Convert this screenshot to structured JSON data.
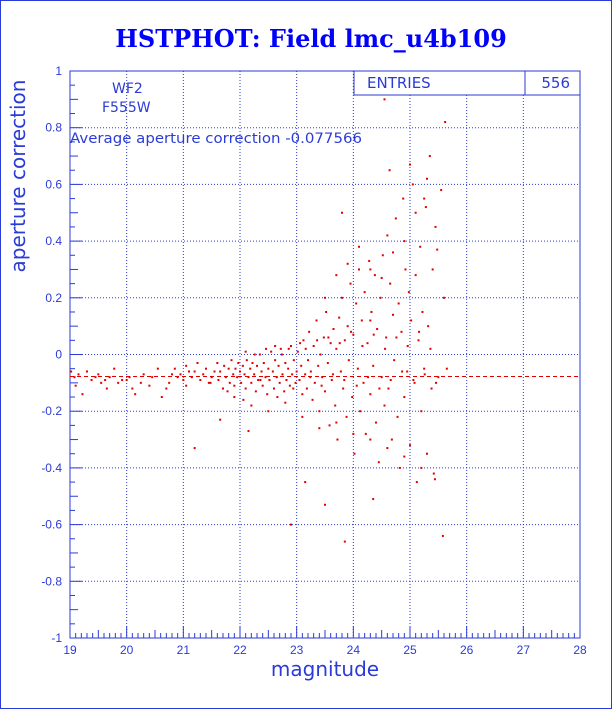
{
  "colors": {
    "axis": "#2b3bd6",
    "grid": "#2b3bd6",
    "points": "#e00000",
    "title": "#0000ff",
    "mean_line": "#e00000"
  },
  "stats_box": {
    "label": "ENTRIES",
    "value": "556"
  },
  "info": {
    "camera": "WF2",
    "filter": "F555W",
    "average_text": "Average aperture correction -0.077566"
  },
  "chart_data": {
    "type": "scatter",
    "title": "HSTPHOT: Field lmc_u4b109",
    "xlabel": "magnitude",
    "ylabel": "aperture correction",
    "xlim": [
      19,
      28
    ],
    "ylim": [
      -1,
      1
    ],
    "grid": true,
    "x_ticks": [
      19,
      20,
      21,
      22,
      23,
      24,
      25,
      26,
      27,
      28
    ],
    "y_ticks": [
      -1,
      -0.8,
      -0.6,
      -0.4,
      -0.2,
      0,
      0.2,
      0.4,
      0.6,
      0.8,
      1
    ],
    "y_tick_labels": [
      "-1",
      "-0.8",
      "-0.6",
      "-0.4",
      "-0.2",
      "0",
      "0.2",
      "0.4",
      "0.6",
      "0.8",
      "1"
    ],
    "mean_value": -0.077566,
    "series": [
      {
        "points": [
          [
            19.02,
            -0.06
          ],
          [
            19.08,
            -0.08
          ],
          [
            19.15,
            -0.07
          ],
          [
            19.22,
            -0.14
          ],
          [
            19.3,
            -0.06
          ],
          [
            19.38,
            -0.09
          ],
          [
            19.45,
            -0.08
          ],
          [
            19.55,
            -0.1
          ],
          [
            19.62,
            -0.09
          ],
          [
            19.7,
            -0.08
          ],
          [
            19.78,
            -0.05
          ],
          [
            19.85,
            -0.1
          ],
          [
            19.92,
            -0.09
          ],
          [
            20.0,
            -0.09
          ],
          [
            20.05,
            -0.08
          ],
          [
            20.1,
            -0.12
          ],
          [
            20.15,
            -0.14
          ],
          [
            20.3,
            -0.07
          ],
          [
            20.45,
            -0.08
          ],
          [
            20.55,
            -0.05
          ],
          [
            20.62,
            -0.15
          ],
          [
            20.7,
            -0.12
          ],
          [
            20.75,
            -0.1
          ],
          [
            20.8,
            -0.07
          ],
          [
            20.85,
            -0.05
          ],
          [
            20.9,
            -0.08
          ],
          [
            20.95,
            -0.07
          ],
          [
            21.0,
            -0.09
          ],
          [
            21.05,
            -0.04
          ],
          [
            21.1,
            -0.06
          ],
          [
            21.15,
            -0.08
          ],
          [
            21.2,
            -0.06
          ],
          [
            21.25,
            -0.03
          ],
          [
            21.3,
            -0.09
          ],
          [
            21.35,
            -0.07
          ],
          [
            21.4,
            -0.05
          ],
          [
            21.45,
            -0.1
          ],
          [
            21.5,
            -0.08
          ],
          [
            21.55,
            -0.06
          ],
          [
            21.6,
            -0.03
          ],
          [
            21.62,
            -0.09
          ],
          [
            21.65,
            -0.06
          ],
          [
            21.7,
            -0.12
          ],
          [
            21.72,
            -0.04
          ],
          [
            21.75,
            -0.08
          ],
          [
            21.8,
            -0.05
          ],
          [
            21.82,
            -0.1
          ],
          [
            21.85,
            -0.02
          ],
          [
            21.88,
            -0.07
          ],
          [
            21.9,
            -0.11
          ],
          [
            21.92,
            -0.05
          ],
          [
            21.95,
            -0.08
          ],
          [
            21.97,
            -0.03
          ],
          [
            22.0,
            -0.06
          ],
          [
            22.02,
            -0.1
          ],
          [
            22.05,
            -0.04
          ],
          [
            22.08,
            -0.07
          ],
          [
            22.1,
            -0.12
          ],
          [
            22.12,
            -0.02
          ],
          [
            22.15,
            -0.08
          ],
          [
            22.18,
            -0.05
          ],
          [
            22.2,
            -0.1
          ],
          [
            22.22,
            -0.03
          ],
          [
            22.25,
            -0.07
          ],
          [
            22.28,
            -0.13
          ],
          [
            22.3,
            -0.04
          ],
          [
            22.32,
            -0.09
          ],
          [
            22.35,
            0.0
          ],
          [
            22.38,
            -0.06
          ],
          [
            22.4,
            -0.11
          ],
          [
            22.42,
            -0.03
          ],
          [
            22.45,
            -0.08
          ],
          [
            22.48,
            -0.14
          ],
          [
            22.5,
            -0.05
          ],
          [
            22.52,
            -0.09
          ],
          [
            22.55,
            0.01
          ],
          [
            22.58,
            -0.06
          ],
          [
            22.6,
            -0.12
          ],
          [
            22.62,
            -0.02
          ],
          [
            22.65,
            -0.08
          ],
          [
            22.68,
            -0.04
          ],
          [
            22.7,
            -0.1
          ],
          [
            22.72,
            0.02
          ],
          [
            22.75,
            -0.07
          ],
          [
            22.78,
            -0.13
          ],
          [
            22.8,
            -0.03
          ],
          [
            22.82,
            -0.09
          ],
          [
            22.85,
            -0.05
          ],
          [
            22.88,
            -0.11
          ],
          [
            22.9,
            0.03
          ],
          [
            22.92,
            -0.07
          ],
          [
            22.95,
            -0.02
          ],
          [
            22.98,
            -0.1
          ],
          [
            23.0,
            -0.06
          ],
          [
            23.02,
            0.01
          ],
          [
            23.05,
            -0.09
          ],
          [
            23.08,
            -0.04
          ],
          [
            23.1,
            -0.14
          ],
          [
            23.12,
            0.05
          ],
          [
            23.15,
            -0.07
          ],
          [
            23.18,
            -0.12
          ],
          [
            23.2,
            -0.02
          ],
          [
            23.22,
            0.08
          ],
          [
            23.25,
            -0.06
          ],
          [
            23.28,
            -0.16
          ],
          [
            23.3,
            0.03
          ],
          [
            23.32,
            -0.1
          ],
          [
            23.35,
            0.12
          ],
          [
            23.38,
            -0.04
          ],
          [
            23.4,
            -0.2
          ],
          [
            23.42,
            0.0
          ],
          [
            23.45,
            -0.08
          ],
          [
            23.48,
            0.06
          ],
          [
            23.5,
            -0.13
          ],
          [
            23.52,
            0.15
          ],
          [
            23.55,
            -0.03
          ],
          [
            23.58,
            -0.25
          ],
          [
            23.6,
            0.04
          ],
          [
            23.62,
            -0.09
          ],
          [
            23.65,
            0.09
          ],
          [
            23.68,
            -0.18
          ],
          [
            23.7,
            0.02
          ],
          [
            23.72,
            -0.3
          ],
          [
            23.75,
            0.13
          ],
          [
            23.78,
            -0.06
          ],
          [
            23.8,
            0.2
          ],
          [
            23.82,
            -0.12
          ],
          [
            23.85,
            0.05
          ],
          [
            23.88,
            -0.22
          ],
          [
            23.9,
            0.1
          ],
          [
            23.92,
            -0.02
          ],
          [
            23.95,
            0.25
          ],
          [
            23.98,
            -0.15
          ],
          [
            24.0,
            0.07
          ],
          [
            24.02,
            -0.35
          ],
          [
            24.05,
            0.18
          ],
          [
            24.08,
            -0.05
          ],
          [
            24.1,
            0.3
          ],
          [
            24.12,
            -0.2
          ],
          [
            24.15,
            0.12
          ],
          [
            24.18,
            -0.1
          ],
          [
            24.2,
            0.22
          ],
          [
            24.22,
            -0.28
          ],
          [
            24.25,
            0.04
          ],
          [
            24.28,
            0.33
          ],
          [
            24.3,
            -0.14
          ],
          [
            24.32,
            0.15
          ],
          [
            24.35,
            -0.04
          ],
          [
            24.38,
            0.28
          ],
          [
            24.4,
            -0.24
          ],
          [
            24.42,
            0.09
          ],
          [
            24.45,
            -0.38
          ],
          [
            24.48,
            0.2
          ],
          [
            24.5,
            -0.08
          ],
          [
            24.52,
            0.35
          ],
          [
            24.55,
            -0.18
          ],
          [
            24.58,
            0.06
          ],
          [
            24.6,
            0.42
          ],
          [
            24.62,
            -0.12
          ],
          [
            24.65,
            0.25
          ],
          [
            24.68,
            -0.3
          ],
          [
            24.7,
            0.14
          ],
          [
            24.72,
            -0.02
          ],
          [
            24.75,
            0.48
          ],
          [
            24.78,
            -0.22
          ],
          [
            24.8,
            0.18
          ],
          [
            24.82,
            -0.4
          ],
          [
            24.85,
            0.08
          ],
          [
            24.88,
            0.55
          ],
          [
            24.9,
            -0.15
          ],
          [
            24.92,
            0.3
          ],
          [
            24.95,
            -0.06
          ],
          [
            24.98,
            0.22
          ],
          [
            25.0,
            -0.32
          ],
          [
            25.02,
            0.12
          ],
          [
            25.05,
            0.6
          ],
          [
            25.08,
            -0.1
          ],
          [
            25.1,
            0.28
          ],
          [
            25.12,
            -0.45
          ],
          [
            25.15,
            0.05
          ],
          [
            25.18,
            0.38
          ],
          [
            25.2,
            -0.2
          ],
          [
            25.22,
            0.15
          ],
          [
            25.25,
            -0.05
          ],
          [
            25.28,
            0.52
          ],
          [
            25.3,
            -0.35
          ],
          [
            25.32,
            0.1
          ],
          [
            25.35,
            0.7
          ],
          [
            25.38,
            -0.12
          ],
          [
            25.4,
            0.3
          ],
          [
            25.42,
            -0.42
          ],
          [
            25.45,
            0.45
          ],
          [
            25.5,
            -0.08
          ],
          [
            25.55,
            0.58
          ],
          [
            25.58,
            -0.64
          ],
          [
            25.6,
            0.2
          ],
          [
            25.62,
            0.82
          ],
          [
            25.65,
            -0.05
          ],
          [
            23.15,
            -0.45
          ],
          [
            23.5,
            -0.53
          ],
          [
            23.85,
            -0.66
          ],
          [
            24.35,
            -0.51
          ],
          [
            22.9,
            -0.6
          ],
          [
            24.55,
            0.9
          ],
          [
            23.8,
            0.5
          ],
          [
            24.3,
            0.12
          ],
          [
            22.15,
            -0.27
          ],
          [
            21.2,
            -0.33
          ],
          [
            21.65,
            -0.23
          ],
          [
            19.1,
            -0.11
          ],
          [
            19.5,
            -0.07
          ],
          [
            19.65,
            -0.12
          ],
          [
            20.25,
            -0.1
          ],
          [
            20.4,
            -0.11
          ],
          [
            21.05,
            -0.11
          ],
          [
            21.48,
            -0.1
          ],
          [
            21.78,
            -0.13
          ],
          [
            22.06,
            -0.16
          ],
          [
            22.36,
            -0.09
          ],
          [
            22.66,
            -0.15
          ],
          [
            22.94,
            -0.12
          ],
          [
            23.24,
            -0.08
          ],
          [
            23.44,
            -0.11
          ],
          [
            23.64,
            -0.07
          ],
          [
            23.84,
            -0.09
          ],
          [
            24.06,
            -0.11
          ],
          [
            24.26,
            -0.08
          ],
          [
            24.46,
            -0.12
          ],
          [
            24.66,
            -0.09
          ],
          [
            24.86,
            -0.06
          ],
          [
            25.06,
            -0.09
          ],
          [
            25.26,
            -0.07
          ],
          [
            25.46,
            -0.1
          ],
          [
            22.1,
            0.01
          ],
          [
            22.26,
            0.0
          ],
          [
            22.46,
            0.02
          ],
          [
            22.62,
            0.03
          ],
          [
            22.74,
            0.0
          ],
          [
            22.86,
            0.02
          ],
          [
            23.06,
            0.04
          ],
          [
            23.16,
            0.02
          ],
          [
            23.36,
            0.05
          ],
          [
            23.56,
            0.06
          ],
          [
            23.76,
            0.04
          ],
          [
            23.96,
            0.08
          ],
          [
            24.16,
            0.03
          ],
          [
            24.36,
            0.07
          ],
          [
            24.56,
            0.02
          ],
          [
            24.76,
            0.06
          ],
          [
            24.96,
            0.03
          ],
          [
            25.16,
            0.08
          ],
          [
            25.36,
            0.02
          ],
          [
            21.9,
            -0.15
          ],
          [
            22.2,
            -0.18
          ],
          [
            22.5,
            -0.2
          ],
          [
            22.8,
            -0.17
          ],
          [
            23.1,
            -0.22
          ],
          [
            23.4,
            -0.26
          ],
          [
            23.7,
            -0.24
          ],
          [
            24.0,
            -0.28
          ],
          [
            24.3,
            -0.3
          ],
          [
            24.6,
            -0.33
          ],
          [
            24.9,
            -0.36
          ],
          [
            25.2,
            -0.4
          ],
          [
            25.44,
            -0.44
          ],
          [
            23.5,
            0.2
          ],
          [
            23.7,
            0.28
          ],
          [
            23.9,
            0.32
          ],
          [
            24.1,
            0.38
          ],
          [
            24.3,
            0.3
          ],
          [
            24.5,
            0.27
          ],
          [
            24.7,
            0.36
          ],
          [
            24.9,
            0.4
          ],
          [
            25.1,
            0.5
          ],
          [
            25.3,
            0.62
          ],
          [
            25.48,
            0.37
          ],
          [
            24.64,
            0.65
          ],
          [
            25.0,
            0.67
          ],
          [
            25.25,
            0.55
          ]
        ]
      }
    ]
  }
}
